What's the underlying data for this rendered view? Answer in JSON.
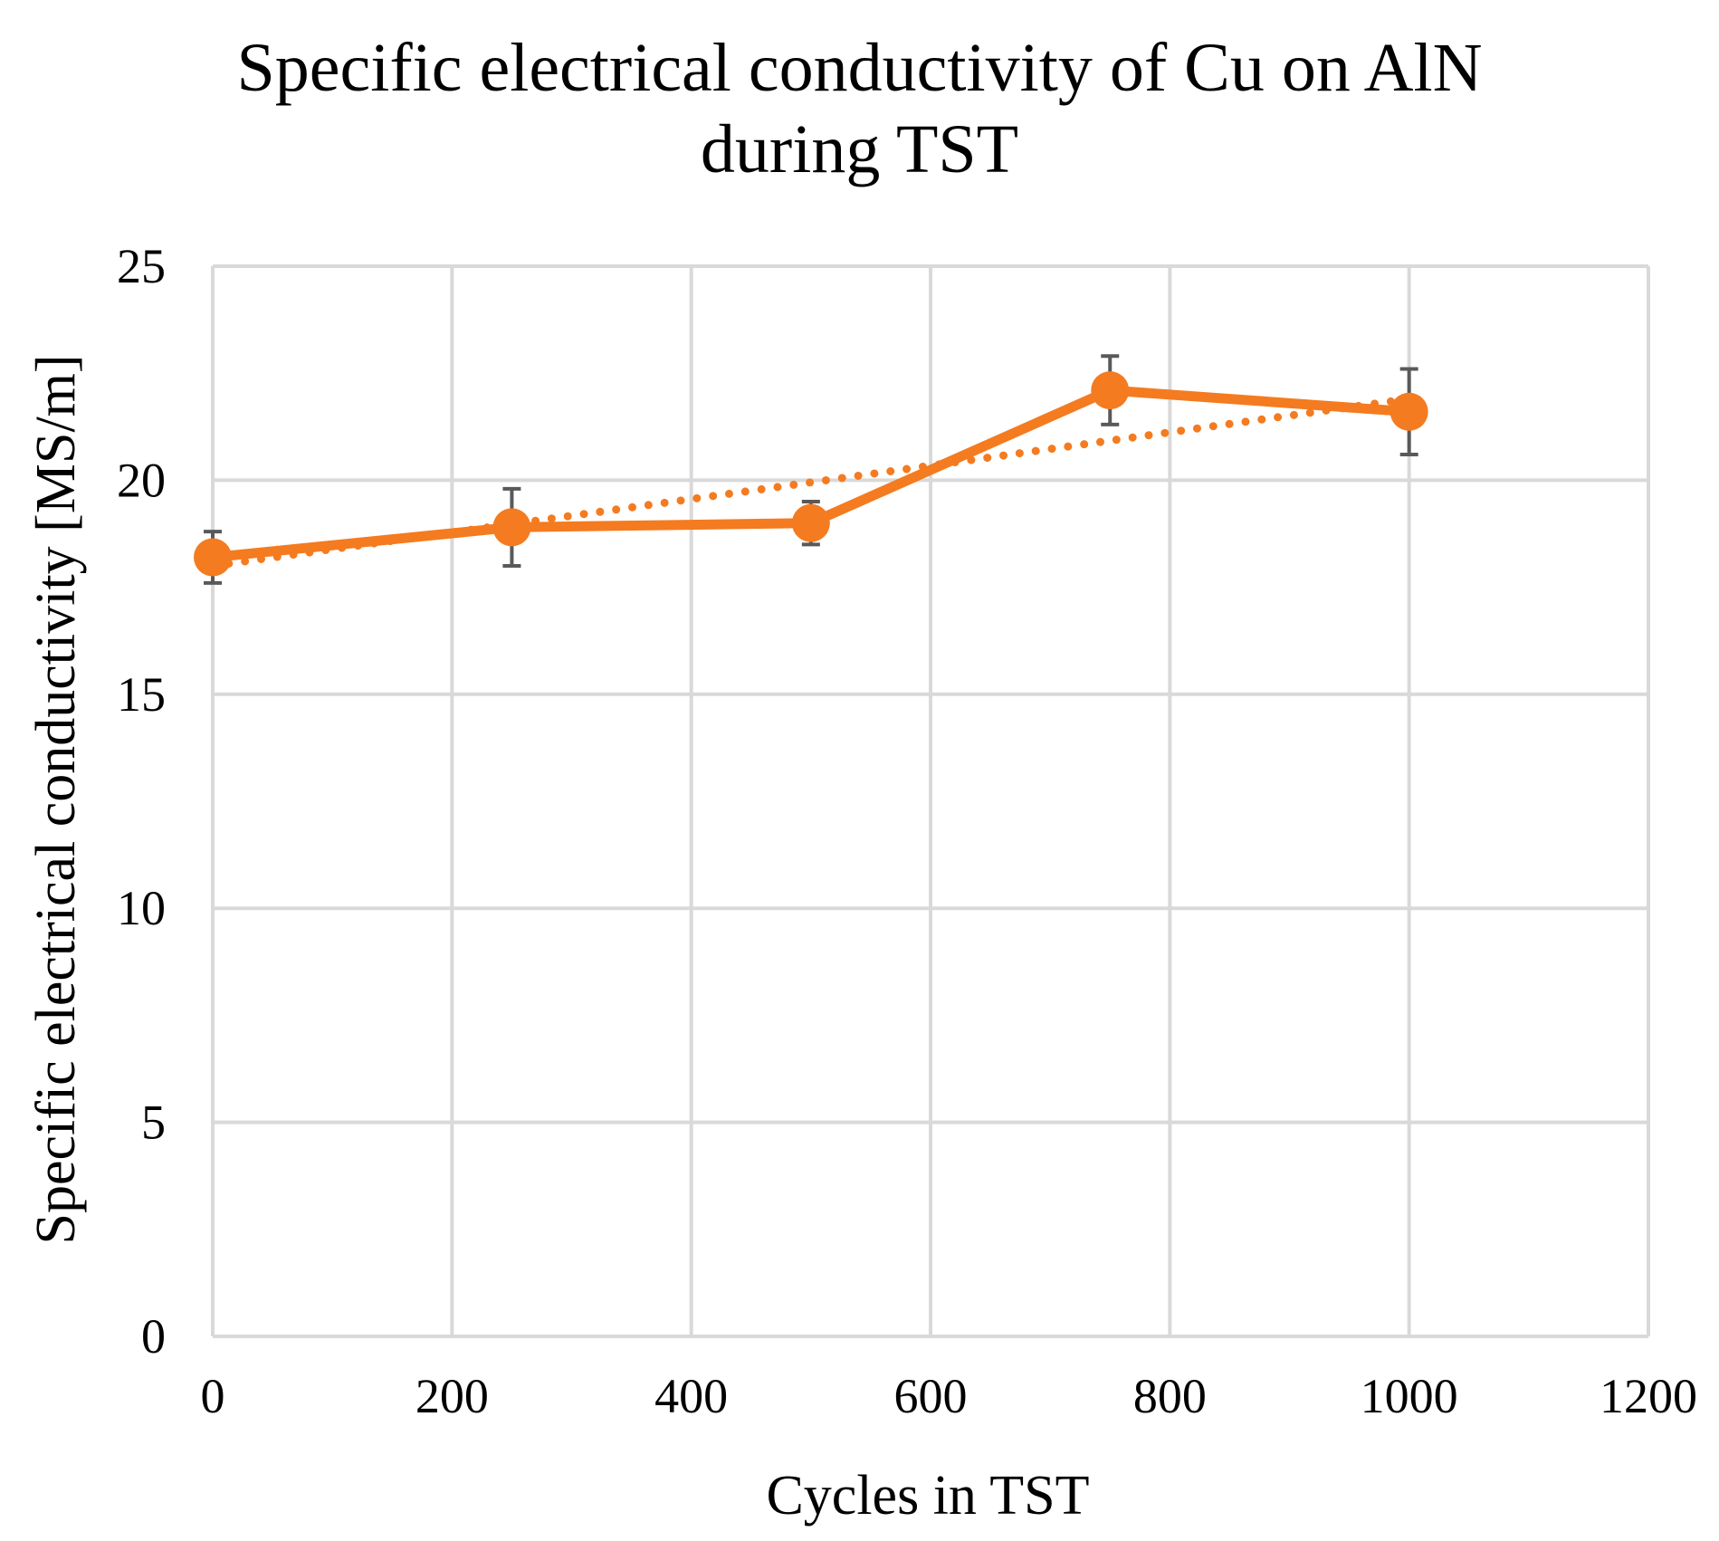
{
  "chart_data": {
    "type": "line",
    "title": [
      "Specific electrical conductivity of Cu on AlN",
      "during TST"
    ],
    "xlabel": "Cycles in TST",
    "ylabel": "Specific electrical conductivity [MS/m]",
    "xlim": [
      0,
      1200
    ],
    "ylim": [
      0,
      25
    ],
    "xticks": [
      0,
      200,
      400,
      600,
      800,
      1000,
      1200
    ],
    "yticks": [
      0,
      5,
      10,
      15,
      20,
      25
    ],
    "grid": true,
    "series": [
      {
        "name": "Cu on AlN",
        "color": "#F47B20",
        "style": "solid",
        "marker": "circle",
        "x": [
          0,
          250,
          500,
          750,
          1000
        ],
        "y": [
          18.2,
          18.9,
          19.0,
          22.1,
          21.6
        ],
        "error": [
          0.6,
          0.9,
          0.5,
          0.8,
          1.0
        ]
      }
    ],
    "trendline": {
      "type": "linear",
      "style": "dotted",
      "color": "#F47B20",
      "x": [
        0,
        1000
      ],
      "y": [
        18.0,
        21.9
      ]
    }
  },
  "colors": {
    "grid": "#D9D9D9",
    "errorbar": "#595959",
    "series": "#F47B20"
  }
}
